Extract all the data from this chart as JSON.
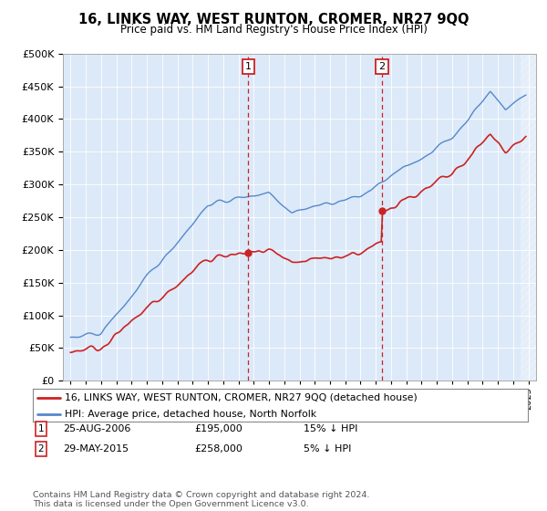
{
  "title": "16, LINKS WAY, WEST RUNTON, CROMER, NR27 9QQ",
  "subtitle": "Price paid vs. HM Land Registry's House Price Index (HPI)",
  "legend_line1": "16, LINKS WAY, WEST RUNTON, CROMER, NR27 9QQ (detached house)",
  "legend_line2": "HPI: Average price, detached house, North Norfolk",
  "annotation1_date": "25-AUG-2006",
  "annotation1_price": "£195,000",
  "annotation1_hpi": "15% ↓ HPI",
  "annotation1_year": 2006.65,
  "annotation1_value": 195000,
  "annotation2_date": "29-MAY-2015",
  "annotation2_price": "£258,000",
  "annotation2_hpi": "5% ↓ HPI",
  "annotation2_year": 2015.41,
  "annotation2_value": 258000,
  "hpi_color": "#5588cc",
  "price_color": "#cc2222",
  "plot_bg": "#dce9f8",
  "footer_text": "Contains HM Land Registry data © Crown copyright and database right 2024.\nThis data is licensed under the Open Government Licence v3.0.",
  "ylim": [
    0,
    500000
  ],
  "yticks": [
    0,
    50000,
    100000,
    150000,
    200000,
    250000,
    300000,
    350000,
    400000,
    450000,
    500000
  ],
  "xlim_start": 1994.5,
  "xlim_end": 2025.5
}
